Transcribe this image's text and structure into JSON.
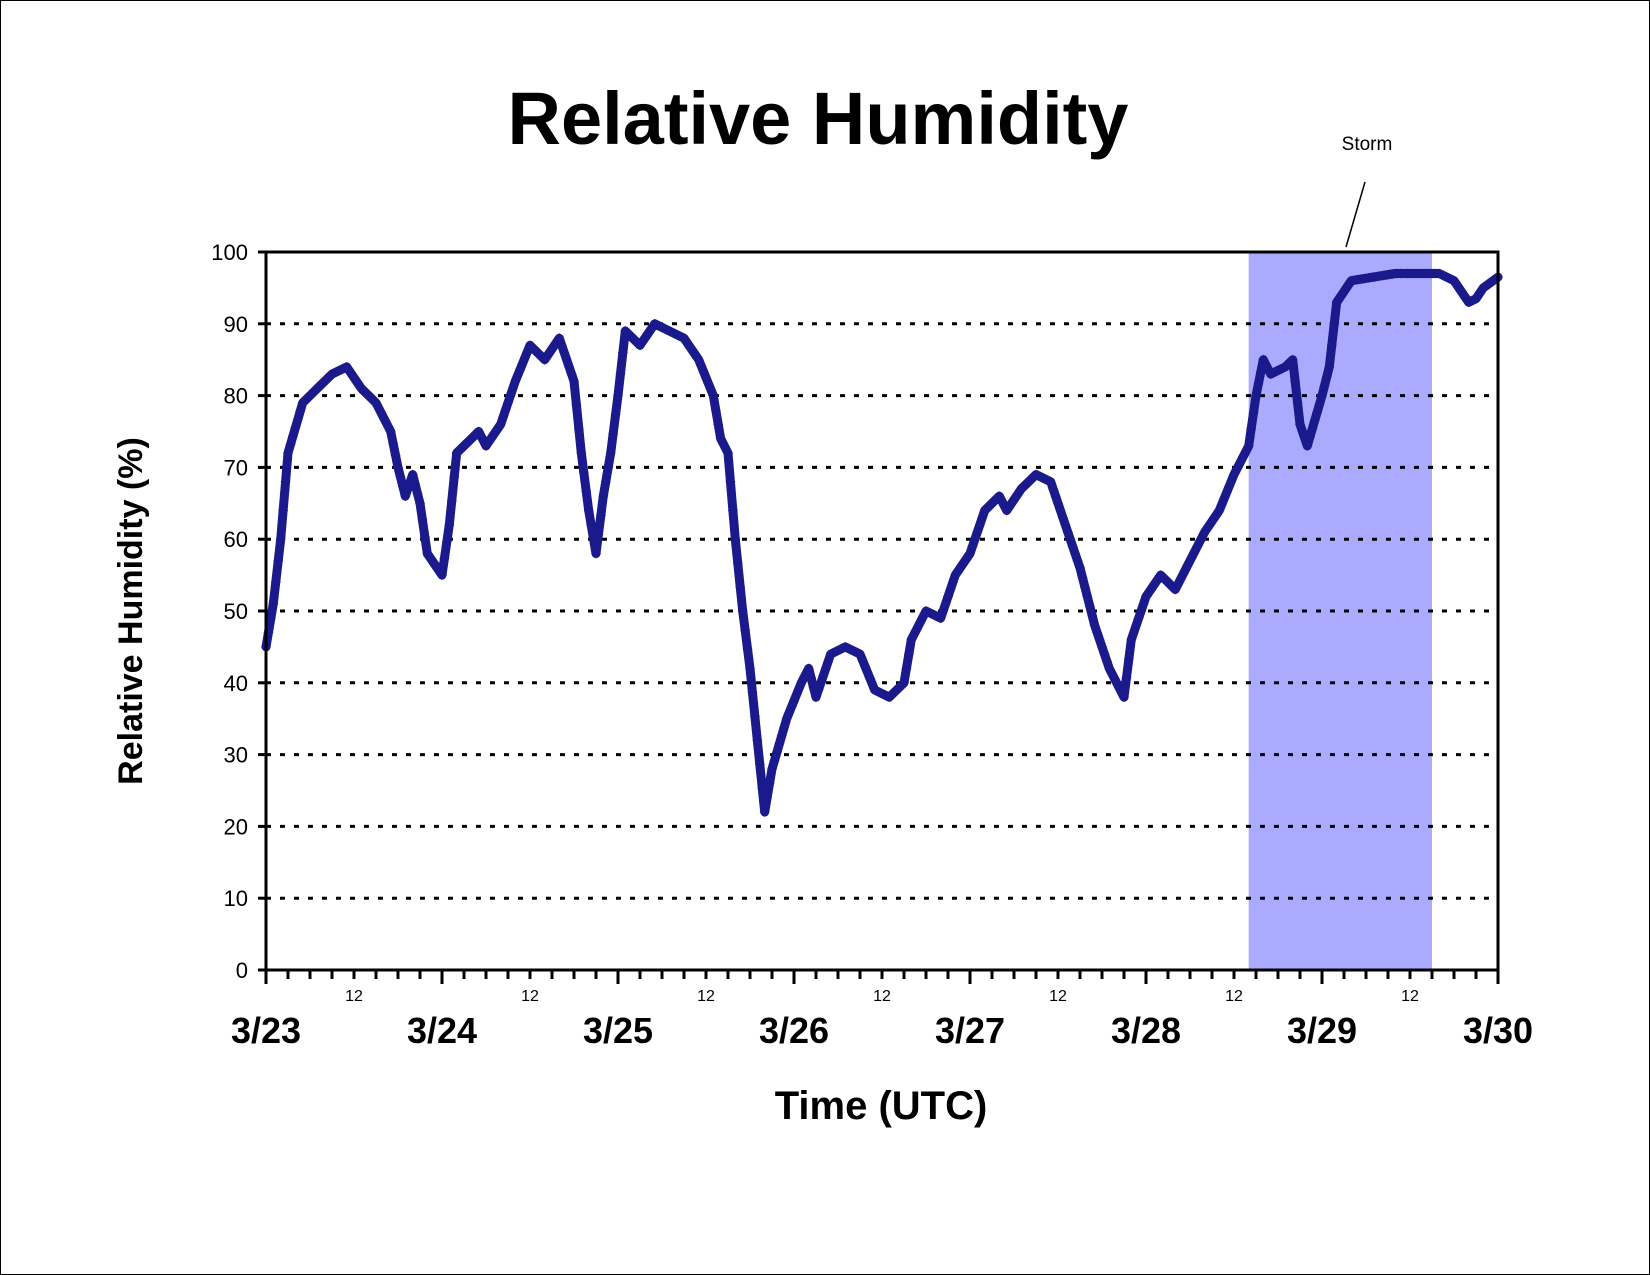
{
  "chart_data": {
    "type": "scatter",
    "title": "Relative Humidity",
    "xlabel": "Time (UTC)",
    "ylabel": "Relative Humidity (%)",
    "ylim": [
      0,
      100
    ],
    "yticks": [
      "0",
      "10",
      "20",
      "30",
      "40",
      "50",
      "60",
      "70",
      "80",
      "90",
      "100"
    ],
    "xlim": [
      "3/23 00:00",
      "3/30 00:00"
    ],
    "day_ticks": [
      "3/23",
      "3/24",
      "3/25",
      "3/26",
      "3/27",
      "3/28",
      "3/29",
      "3/30"
    ],
    "midday_ticks": [
      "12",
      "12",
      "12",
      "12",
      "12",
      "12",
      "12"
    ],
    "grid": "horizontal dotted",
    "series": [
      {
        "color": "#1a1a8c",
        "marker": "diamond",
        "points": [
          [
            "3/23 00:00",
            45
          ],
          [
            "3/23 01:00",
            51
          ],
          [
            "3/23 02:00",
            60
          ],
          [
            "3/23 03:00",
            72
          ],
          [
            "3/23 05:00",
            79
          ],
          [
            "3/23 07:00",
            81
          ],
          [
            "3/23 09:00",
            83
          ],
          [
            "3/23 11:00",
            84
          ],
          [
            "3/23 13:00",
            81
          ],
          [
            "3/23 15:00",
            79
          ],
          [
            "3/23 17:00",
            75
          ],
          [
            "3/23 18:00",
            70
          ],
          [
            "3/23 19:00",
            66
          ],
          [
            "3/23 20:00",
            69
          ],
          [
            "3/23 21:00",
            65
          ],
          [
            "3/23 22:00",
            58
          ],
          [
            "3/24 00:00",
            55
          ],
          [
            "3/24 01:00",
            62
          ],
          [
            "3/24 02:00",
            72
          ],
          [
            "3/24 05:00",
            75
          ],
          [
            "3/24 06:00",
            73
          ],
          [
            "3/24 08:00",
            76
          ],
          [
            "3/24 10:00",
            82
          ],
          [
            "3/24 12:00",
            87
          ],
          [
            "3/24 14:00",
            85
          ],
          [
            "3/24 16:00",
            88
          ],
          [
            "3/24 18:00",
            82
          ],
          [
            "3/24 19:00",
            72
          ],
          [
            "3/24 20:00",
            64
          ],
          [
            "3/24 21:00",
            58
          ],
          [
            "3/24 22:00",
            66
          ],
          [
            "3/24 23:00",
            72
          ],
          [
            "3/25 00:00",
            80
          ],
          [
            "3/25 01:00",
            89
          ],
          [
            "3/25 03:00",
            87
          ],
          [
            "3/25 05:00",
            90
          ],
          [
            "3/25 07:00",
            89
          ],
          [
            "3/25 09:00",
            88
          ],
          [
            "3/25 11:00",
            85
          ],
          [
            "3/25 13:00",
            80
          ],
          [
            "3/25 14:00",
            74
          ],
          [
            "3/25 15:00",
            72
          ],
          [
            "3/25 16:00",
            60
          ],
          [
            "3/25 17:00",
            50
          ],
          [
            "3/25 18:00",
            42
          ],
          [
            "3/25 19:00",
            32
          ],
          [
            "3/25 20:00",
            22
          ],
          [
            "3/25 21:00",
            28
          ],
          [
            "3/25 23:00",
            35
          ],
          [
            "3/26 01:00",
            40
          ],
          [
            "3/26 02:00",
            42
          ],
          [
            "3/26 03:00",
            38
          ],
          [
            "3/26 05:00",
            44
          ],
          [
            "3/26 07:00",
            45
          ],
          [
            "3/26 09:00",
            44
          ],
          [
            "3/26 11:00",
            39
          ],
          [
            "3/26 13:00",
            38
          ],
          [
            "3/26 15:00",
            40
          ],
          [
            "3/26 16:00",
            46
          ],
          [
            "3/26 18:00",
            50
          ],
          [
            "3/26 20:00",
            49
          ],
          [
            "3/26 22:00",
            55
          ],
          [
            "3/27 00:00",
            58
          ],
          [
            "3/27 02:00",
            64
          ],
          [
            "3/27 04:00",
            66
          ],
          [
            "3/27 05:00",
            64
          ],
          [
            "3/27 07:00",
            67
          ],
          [
            "3/27 09:00",
            69
          ],
          [
            "3/27 11:00",
            68
          ],
          [
            "3/27 13:00",
            62
          ],
          [
            "3/27 15:00",
            56
          ],
          [
            "3/27 17:00",
            48
          ],
          [
            "3/27 19:00",
            42
          ],
          [
            "3/27 21:00",
            38
          ],
          [
            "3/27 22:00",
            46
          ],
          [
            "3/28 00:00",
            52
          ],
          [
            "3/28 02:00",
            55
          ],
          [
            "3/28 04:00",
            53
          ],
          [
            "3/28 06:00",
            57
          ],
          [
            "3/28 08:00",
            61
          ],
          [
            "3/28 10:00",
            64
          ],
          [
            "3/28 12:00",
            69
          ],
          [
            "3/28 14:00",
            73
          ],
          [
            "3/28 15:00",
            80
          ],
          [
            "3/28 16:00",
            85
          ],
          [
            "3/28 17:00",
            83
          ],
          [
            "3/28 19:00",
            84
          ],
          [
            "3/28 20:00",
            85
          ],
          [
            "3/28 21:00",
            76
          ],
          [
            "3/28 22:00",
            73
          ],
          [
            "3/29 00:00",
            80
          ],
          [
            "3/29 01:00",
            84
          ],
          [
            "3/29 02:00",
            93
          ],
          [
            "3/29 04:00",
            96
          ],
          [
            "3/29 07:00",
            96.5
          ],
          [
            "3/29 10:00",
            97
          ],
          [
            "3/29 13:00",
            97
          ],
          [
            "3/29 16:00",
            97
          ],
          [
            "3/29 18:00",
            96
          ],
          [
            "3/29 20:00",
            93
          ],
          [
            "3/29 21:00",
            93.5
          ],
          [
            "3/29 22:00",
            95
          ],
          [
            "3/30 00:00",
            96.5
          ]
        ]
      }
    ],
    "shaded_region": {
      "x": [
        "3/28 14:00",
        "3/29 15:00"
      ],
      "color": "#aaaaff"
    },
    "annotations": [
      {
        "text": "Storm"
      }
    ]
  }
}
